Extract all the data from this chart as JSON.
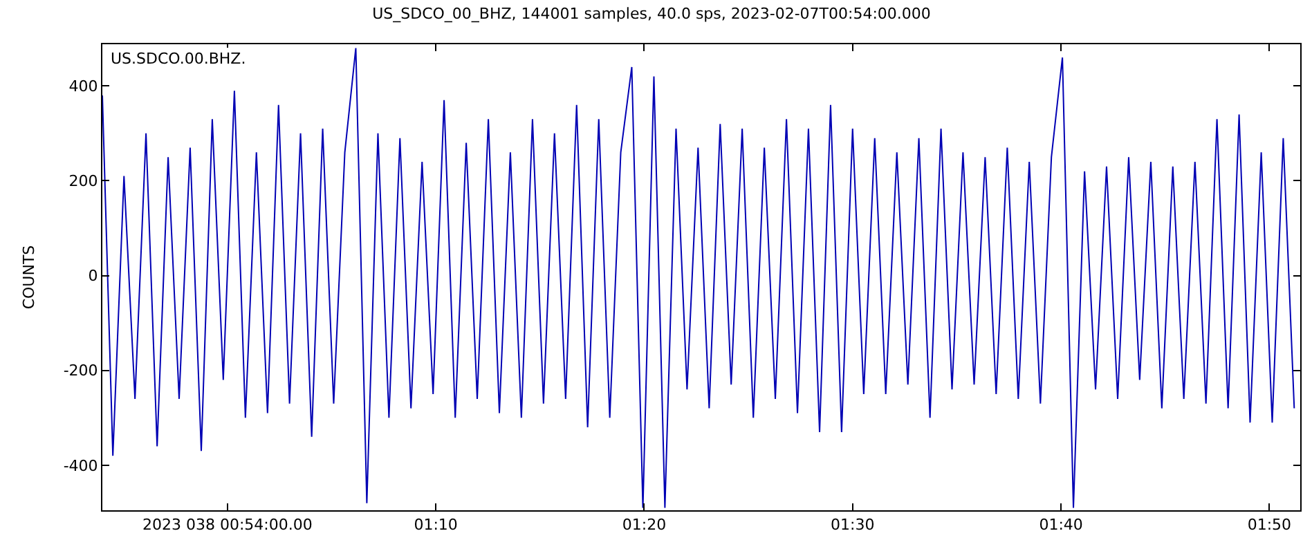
{
  "chart_data": {
    "type": "line",
    "title": "US_SDCO_00_BHZ, 144001 samples, 40.0 sps, 2023-02-07T00:54:00.000",
    "ylabel": "COUNTS",
    "annotations": [
      "US.SDCO.00.BHZ."
    ],
    "x": [
      0.9,
      0.9084,
      0.9173,
      0.9261,
      0.9349,
      0.9438,
      0.9526,
      0.9614,
      0.9702,
      0.9791,
      0.9879,
      0.9967,
      1.0056,
      1.0144,
      1.0232,
      1.0321,
      1.0409,
      1.0497,
      1.0585,
      1.0674,
      1.0762,
      1.085,
      1.0939,
      1.1027,
      1.1115,
      1.1204,
      1.1292,
      1.138,
      1.1468,
      1.1557,
      1.1645,
      1.1733,
      1.1822,
      1.191,
      1.1998,
      1.2087,
      1.2175,
      1.2263,
      1.2351,
      1.244,
      1.2528,
      1.2616,
      1.2705,
      1.2793,
      1.2881,
      1.297,
      1.3058,
      1.3146,
      1.3234,
      1.3323,
      1.3411,
      1.3499,
      1.3588,
      1.3676,
      1.3764,
      1.3853,
      1.3941,
      1.4029,
      1.4117,
      1.4206,
      1.4294,
      1.4382,
      1.4471,
      1.4559,
      1.4647,
      1.4736,
      1.4824,
      1.4912,
      1.5,
      1.5089,
      1.5177,
      1.5265,
      1.5354,
      1.5442,
      1.553,
      1.5619,
      1.5707,
      1.5795,
      1.5883,
      1.5972,
      1.606,
      1.6148,
      1.6237,
      1.6325,
      1.6413,
      1.6502,
      1.659,
      1.6678,
      1.6766,
      1.6855,
      1.6943,
      1.7031,
      1.712,
      1.7208,
      1.7296,
      1.7385,
      1.7473,
      1.7561,
      1.7649,
      1.7738,
      1.7826,
      1.7914,
      1.8003,
      1.8091,
      1.8179,
      1.8268,
      1.8356,
      1.8444,
      1.8532
    ],
    "series": [
      {
        "color": "#0000b4",
        "values": [
          380,
          -380,
          210,
          -260,
          300,
          -360,
          250,
          -260,
          270,
          -370,
          330,
          -220,
          390,
          -300,
          260,
          -290,
          360,
          -270,
          300,
          -340,
          310,
          -270,
          260,
          480,
          -480,
          300,
          -300,
          290,
          -280,
          240,
          -250,
          370,
          -300,
          280,
          -260,
          330,
          -290,
          260,
          -300,
          330,
          -270,
          300,
          -260,
          360,
          -320,
          330,
          -300,
          260,
          440,
          -490,
          420,
          -490,
          310,
          -240,
          270,
          -280,
          320,
          -230,
          310,
          -300,
          270,
          -260,
          330,
          -290,
          310,
          -330,
          360,
          -330,
          310,
          -250,
          290,
          -250,
          260,
          -230,
          290,
          -300,
          310,
          -240,
          260,
          -230,
          250,
          -250,
          270,
          -260,
          240,
          -270,
          250,
          460,
          -490,
          220,
          -240,
          230,
          -260,
          250,
          -220,
          240,
          -280,
          230,
          -260,
          240,
          -270,
          330,
          -280,
          340,
          -310,
          260,
          -310,
          290,
          -280
        ]
      }
    ],
    "xlim": [
      0.9,
      1.858
    ],
    "xticks": [
      {
        "value": 1.0,
        "label": "2023 038 00:54:00.00"
      },
      {
        "value": 1.16667,
        "label": "01:10"
      },
      {
        "value": 1.33333,
        "label": "01:20"
      },
      {
        "value": 1.5,
        "label": "01:30"
      },
      {
        "value": 1.66667,
        "label": "01:40"
      },
      {
        "value": 1.83333,
        "label": "01:50"
      }
    ],
    "ylim": [
      -495,
      488
    ],
    "yticks": [
      -400,
      -200,
      0,
      200,
      400
    ],
    "marker": "none",
    "line_style": "solid"
  }
}
